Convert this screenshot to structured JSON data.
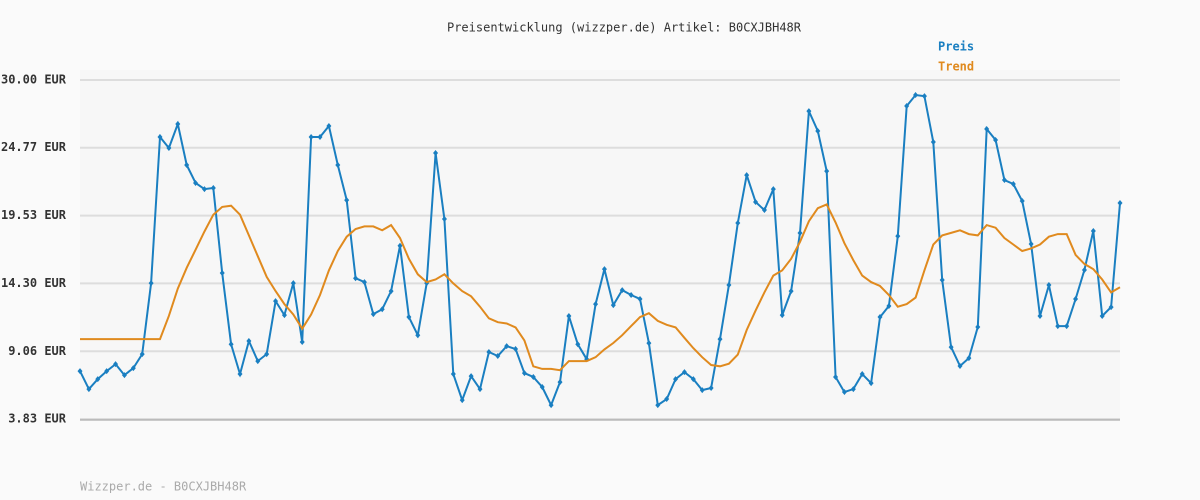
{
  "chart_data": {
    "type": "line",
    "title": "Preisentwicklung (wizzper.de) Artikel: B0CXJBH48R",
    "footer": "Wizzper.de - B0CXJBH48R",
    "ylim": [
      3.83,
      30.0
    ],
    "yticks": [
      {
        "value": 3.83,
        "label": "3.83 EUR"
      },
      {
        "value": 9.06,
        "label": "9.06 EUR"
      },
      {
        "value": 14.3,
        "label": "14.30 EUR"
      },
      {
        "value": 19.53,
        "label": "19.53 EUR"
      },
      {
        "value": 24.77,
        "label": "24.77 EUR"
      },
      {
        "value": 30.0,
        "label": "30.00 EUR"
      }
    ],
    "grid": true,
    "legend": "top-right",
    "series": [
      {
        "name": "Preis",
        "color": "#1a7fc1",
        "markers": true,
        "values": [
          7.53,
          6.14,
          6.91,
          7.53,
          8.07,
          7.22,
          7.76,
          8.84,
          14.32,
          25.6,
          24.75,
          26.6,
          23.44,
          22.05,
          21.58,
          21.66,
          15.1,
          9.6,
          7.3,
          9.85,
          8.3,
          8.84,
          12.93,
          11.85,
          14.32,
          9.77,
          25.6,
          25.6,
          26.45,
          23.44,
          20.73,
          14.7,
          14.4,
          11.93,
          12.3,
          13.7,
          17.2,
          11.7,
          10.3,
          14.32,
          24.36,
          19.27,
          7.3,
          5.29,
          7.14,
          6.14,
          9.0,
          8.69,
          9.46,
          9.23,
          7.37,
          7.07,
          6.3,
          4.9,
          6.68,
          11.78,
          9.6,
          8.45,
          12.7,
          15.4,
          12.62,
          13.78,
          13.4,
          13.09,
          9.69,
          4.9,
          5.37,
          6.91,
          7.45,
          6.91,
          6.06,
          6.22,
          10.0,
          14.17,
          18.96,
          22.66,
          20.58,
          19.96,
          21.58,
          11.85,
          13.7,
          18.19,
          27.6,
          26.06,
          22.97,
          7.07,
          5.91,
          6.14,
          7.3,
          6.6,
          11.7,
          12.55,
          17.95,
          27.99,
          28.84,
          28.76,
          25.21,
          14.56,
          9.38,
          7.92,
          8.53,
          10.93,
          26.22,
          25.37,
          22.28,
          21.97,
          20.66,
          17.34,
          11.78,
          14.17,
          11.0,
          11.0,
          13.09,
          15.33,
          18.34,
          11.78,
          12.47,
          20.5
        ]
      },
      {
        "name": "Trend",
        "color": "#e08a1e",
        "markers": false,
        "values": [
          10.0,
          10.0,
          10.0,
          10.0,
          10.0,
          10.0,
          10.0,
          10.0,
          10.0,
          10.0,
          11.8,
          13.9,
          15.5,
          16.9,
          18.3,
          19.6,
          20.2,
          20.3,
          19.6,
          18.0,
          16.4,
          14.8,
          13.7,
          12.7,
          11.9,
          10.8,
          11.9,
          13.4,
          15.3,
          16.8,
          17.9,
          18.5,
          18.7,
          18.7,
          18.4,
          18.8,
          17.8,
          16.2,
          15.0,
          14.4,
          14.6,
          15.0,
          14.3,
          13.7,
          13.3,
          12.5,
          11.6,
          11.3,
          11.2,
          10.9,
          9.9,
          7.9,
          7.7,
          7.7,
          7.6,
          8.3,
          8.3,
          8.3,
          8.6,
          9.2,
          9.7,
          10.3,
          11.0,
          11.7,
          12.0,
          11.4,
          11.1,
          10.9,
          10.1,
          9.3,
          8.6,
          8.0,
          7.9,
          8.1,
          8.8,
          10.7,
          12.2,
          13.6,
          14.9,
          15.3,
          16.2,
          17.5,
          19.1,
          20.1,
          20.4,
          19.0,
          17.4,
          16.1,
          14.9,
          14.4,
          14.1,
          13.4,
          12.5,
          12.7,
          13.2,
          15.3,
          17.3,
          18.0,
          18.2,
          18.4,
          18.1,
          18.0,
          18.8,
          18.6,
          17.8,
          17.3,
          16.8,
          17.0,
          17.3,
          17.9,
          18.1,
          18.1,
          16.5,
          15.8,
          15.4,
          14.6,
          13.6,
          14.0
        ]
      }
    ]
  }
}
